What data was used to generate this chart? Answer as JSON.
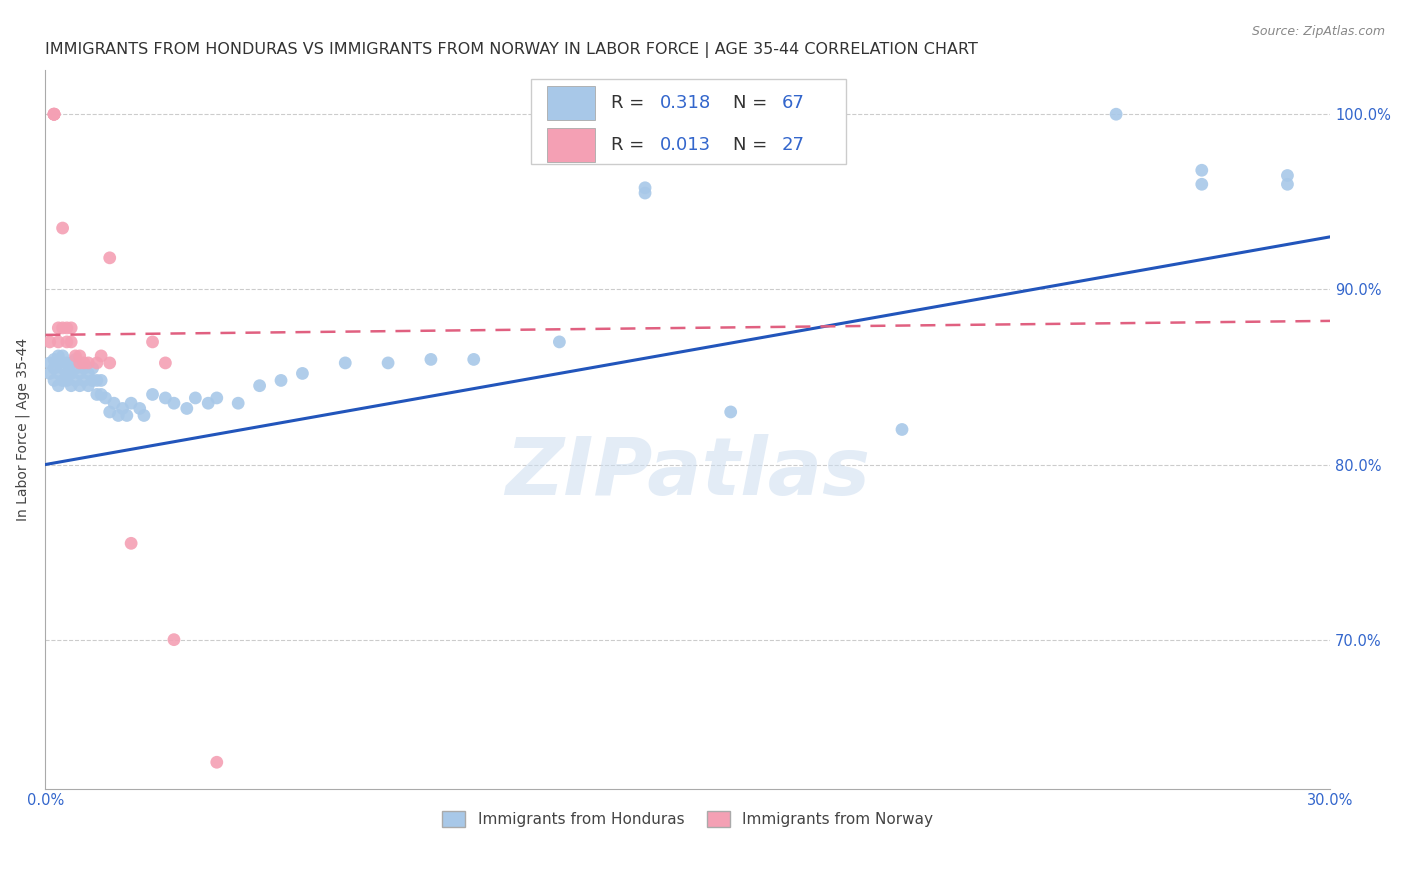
{
  "title": "IMMIGRANTS FROM HONDURAS VS IMMIGRANTS FROM NORWAY IN LABOR FORCE | AGE 35-44 CORRELATION CHART",
  "source": "Source: ZipAtlas.com",
  "ylabel": "In Labor Force | Age 35-44",
  "yticks": [
    "100.0%",
    "90.0%",
    "80.0%",
    "70.0%"
  ],
  "ytick_vals": [
    1.0,
    0.9,
    0.8,
    0.7
  ],
  "xmin": 0.0,
  "xmax": 0.3,
  "ymin": 0.615,
  "ymax": 1.025,
  "watermark": "ZIPatlas",
  "legend_r1": "0.318",
  "legend_n1": "67",
  "legend_r2": "0.013",
  "legend_n2": "27",
  "legend_label1": "Immigrants from Honduras",
  "legend_label2": "Immigrants from Norway",
  "color_honduras": "#a8c8e8",
  "color_norway": "#f4a0b4",
  "color_line_honduras": "#2255bb",
  "color_line_norway": "#e06080",
  "title_fontsize": 11.5,
  "axis_label_fontsize": 10,
  "tick_fontsize": 10.5,
  "honduras_x": [
    0.001,
    0.001,
    0.002,
    0.002,
    0.002,
    0.003,
    0.003,
    0.003,
    0.003,
    0.004,
    0.004,
    0.004,
    0.005,
    0.005,
    0.005,
    0.006,
    0.006,
    0.006,
    0.007,
    0.007,
    0.007,
    0.008,
    0.008,
    0.009,
    0.009,
    0.01,
    0.01,
    0.011,
    0.011,
    0.012,
    0.012,
    0.013,
    0.013,
    0.014,
    0.015,
    0.016,
    0.017,
    0.018,
    0.019,
    0.02,
    0.022,
    0.023,
    0.025,
    0.028,
    0.03,
    0.033,
    0.035,
    0.038,
    0.04,
    0.045,
    0.05,
    0.055,
    0.06,
    0.07,
    0.08,
    0.09,
    0.1,
    0.12,
    0.14,
    0.16,
    0.2,
    0.25,
    0.27,
    0.14,
    0.27,
    0.29,
    0.29
  ],
  "honduras_y": [
    0.852,
    0.858,
    0.848,
    0.855,
    0.86,
    0.845,
    0.852,
    0.858,
    0.862,
    0.848,
    0.855,
    0.862,
    0.848,
    0.852,
    0.858,
    0.845,
    0.852,
    0.858,
    0.848,
    0.855,
    0.86,
    0.845,
    0.852,
    0.848,
    0.855,
    0.845,
    0.852,
    0.848,
    0.855,
    0.84,
    0.848,
    0.84,
    0.848,
    0.838,
    0.83,
    0.835,
    0.828,
    0.832,
    0.828,
    0.835,
    0.832,
    0.828,
    0.84,
    0.838,
    0.835,
    0.832,
    0.838,
    0.835,
    0.838,
    0.835,
    0.845,
    0.848,
    0.852,
    0.858,
    0.858,
    0.86,
    0.86,
    0.87,
    0.955,
    0.83,
    0.82,
    1.0,
    0.968,
    0.958,
    0.96,
    0.96,
    0.965
  ],
  "norway_x": [
    0.001,
    0.002,
    0.002,
    0.002,
    0.002,
    0.003,
    0.003,
    0.004,
    0.004,
    0.005,
    0.005,
    0.006,
    0.006,
    0.007,
    0.008,
    0.008,
    0.009,
    0.01,
    0.012,
    0.013,
    0.015,
    0.015,
    0.02,
    0.025,
    0.028,
    0.03,
    0.04
  ],
  "norway_y": [
    0.87,
    1.0,
    1.0,
    1.0,
    1.0,
    0.87,
    0.878,
    0.935,
    0.878,
    0.87,
    0.878,
    0.87,
    0.878,
    0.862,
    0.858,
    0.862,
    0.858,
    0.858,
    0.858,
    0.862,
    0.918,
    0.858,
    0.755,
    0.87,
    0.858,
    0.7,
    0.63
  ],
  "line_honduras_x0": 0.0,
  "line_honduras_y0": 0.8,
  "line_honduras_x1": 0.3,
  "line_honduras_y1": 0.93,
  "line_norway_x0": 0.0,
  "line_norway_y0": 0.874,
  "line_norway_x1": 0.3,
  "line_norway_y1": 0.882
}
